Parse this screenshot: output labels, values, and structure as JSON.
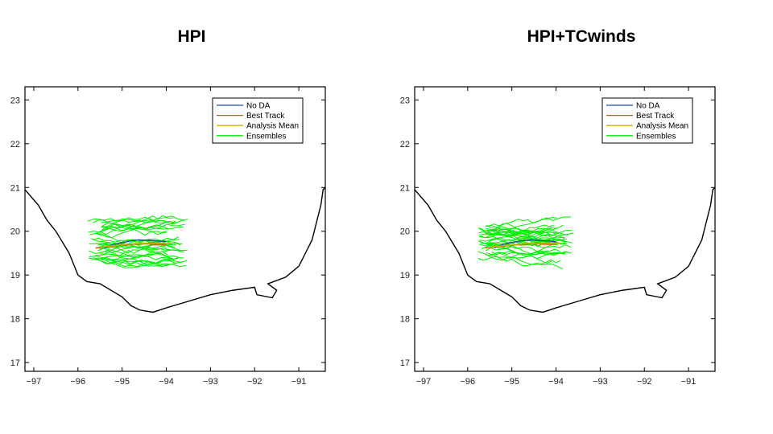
{
  "panels": [
    {
      "title": "HPI",
      "legend": [
        {
          "label": "No DA",
          "color": "#1f4e9e"
        },
        {
          "label": "Best Track",
          "color": "#d95319"
        },
        {
          "label": "Analysis Mean",
          "color": "#c8b400"
        },
        {
          "label": "Ensembles",
          "color": "#00ee00"
        }
      ]
    },
    {
      "title": "HPI+TCwinds",
      "legend": [
        {
          "label": "No DA",
          "color": "#1f4e9e"
        },
        {
          "label": "Best Track",
          "color": "#d95319"
        },
        {
          "label": "Analysis Mean",
          "color": "#c8b400"
        },
        {
          "label": "Ensembles",
          "color": "#00ee00"
        }
      ]
    }
  ],
  "chart_data": [
    {
      "type": "line",
      "title": "HPI",
      "xlim": [
        -97.2,
        -90.4
      ],
      "ylim": [
        16.8,
        23.3
      ],
      "xticks": [
        -97,
        -96,
        -95,
        -94,
        -93,
        -92,
        -91
      ],
      "yticks": [
        17,
        18,
        19,
        20,
        21,
        22,
        23
      ],
      "legend_position": "top-right",
      "grid": false,
      "coastline": {
        "color": "#000000",
        "x": [
          -97.2,
          -96.9,
          -96.7,
          -96.5,
          -96.2,
          -96.0,
          -95.8,
          -95.5,
          -95.0,
          -94.8,
          -94.6,
          -94.3,
          -94.0,
          -93.5,
          -93.0,
          -92.5,
          -92.0,
          -91.95,
          -91.6,
          -91.5,
          -91.7,
          -91.3,
          -91.0,
          -90.9,
          -90.7,
          -90.6,
          -90.5,
          -90.45,
          -90.3
        ],
        "y": [
          20.95,
          20.6,
          20.25,
          20.0,
          19.5,
          19.0,
          18.85,
          18.8,
          18.5,
          18.3,
          18.2,
          18.15,
          18.25,
          18.4,
          18.55,
          18.65,
          18.72,
          18.55,
          18.48,
          18.65,
          18.8,
          18.95,
          19.2,
          19.4,
          19.8,
          20.2,
          20.6,
          20.95,
          21.1
        ]
      },
      "series": [
        {
          "name": "No DA",
          "color": "#1f4e9e",
          "x": [
            -95.4,
            -95.2,
            -95.0,
            -94.8,
            -94.6,
            -94.4,
            -94.2,
            -94.0
          ],
          "y": [
            19.62,
            19.7,
            19.74,
            19.78,
            19.8,
            19.79,
            19.78,
            19.76
          ]
        },
        {
          "name": "Best Track",
          "color": "#d95319",
          "x": [
            -95.6,
            -95.4,
            -95.2,
            -95.0,
            -94.8,
            -94.6,
            -94.4,
            -94.2,
            -94.0
          ],
          "y": [
            19.62,
            19.64,
            19.66,
            19.68,
            19.7,
            19.71,
            19.71,
            19.7,
            19.7
          ]
        },
        {
          "name": "Analysis Mean",
          "color": "#c8b400",
          "x": [
            -95.5,
            -95.3,
            -95.1,
            -94.9,
            -94.7,
            -94.5,
            -94.3,
            -94.1,
            -93.9
          ],
          "y": [
            19.64,
            19.66,
            19.68,
            19.7,
            19.72,
            19.72,
            19.73,
            19.72,
            19.72
          ]
        },
        {
          "name": "Ensembles",
          "color": "#00ee00",
          "x_range": [
            -95.8,
            -93.5
          ],
          "y_range": [
            19.2,
            20.4
          ]
        }
      ]
    },
    {
      "type": "line",
      "title": "HPI+TCwinds",
      "xlim": [
        -97.2,
        -90.4
      ],
      "ylim": [
        16.8,
        23.3
      ],
      "xticks": [
        -97,
        -96,
        -95,
        -94,
        -93,
        -92,
        -91
      ],
      "yticks": [
        17,
        18,
        19,
        20,
        21,
        22,
        23
      ],
      "legend_position": "top-right",
      "grid": false,
      "coastline": {
        "color": "#000000",
        "x": [
          -97.2,
          -96.9,
          -96.7,
          -96.5,
          -96.2,
          -96.0,
          -95.8,
          -95.5,
          -95.0,
          -94.8,
          -94.6,
          -94.3,
          -94.0,
          -93.5,
          -93.0,
          -92.5,
          -92.0,
          -91.95,
          -91.6,
          -91.5,
          -91.7,
          -91.3,
          -91.0,
          -90.9,
          -90.7,
          -90.6,
          -90.5,
          -90.45,
          -90.3
        ],
        "y": [
          20.95,
          20.6,
          20.25,
          20.0,
          19.5,
          19.0,
          18.85,
          18.8,
          18.5,
          18.3,
          18.2,
          18.15,
          18.25,
          18.4,
          18.55,
          18.65,
          18.72,
          18.55,
          18.48,
          18.65,
          18.8,
          18.95,
          19.2,
          19.4,
          19.8,
          20.2,
          20.6,
          20.95,
          21.1
        ]
      },
      "series": [
        {
          "name": "No DA",
          "color": "#1f4e9e",
          "x": [
            -95.4,
            -95.2,
            -95.0,
            -94.8,
            -94.6,
            -94.4,
            -94.2,
            -94.0
          ],
          "y": [
            19.62,
            19.7,
            19.74,
            19.78,
            19.8,
            19.79,
            19.78,
            19.76
          ]
        },
        {
          "name": "Best Track",
          "color": "#d95319",
          "x": [
            -95.6,
            -95.4,
            -95.2,
            -95.0,
            -94.8,
            -94.6,
            -94.4,
            -94.2,
            -94.0
          ],
          "y": [
            19.62,
            19.64,
            19.66,
            19.68,
            19.7,
            19.71,
            19.71,
            19.7,
            19.7
          ]
        },
        {
          "name": "Analysis Mean",
          "color": "#c8b400",
          "x": [
            -95.5,
            -95.3,
            -95.1,
            -94.9,
            -94.7,
            -94.5,
            -94.3,
            -94.1,
            -93.9
          ],
          "y": [
            19.64,
            19.66,
            19.68,
            19.7,
            19.72,
            19.72,
            19.73,
            19.72,
            19.72
          ]
        },
        {
          "name": "Ensembles",
          "color": "#00ee00",
          "x_range": [
            -95.8,
            -93.6
          ],
          "y_range": [
            19.25,
            20.35
          ]
        }
      ]
    }
  ]
}
